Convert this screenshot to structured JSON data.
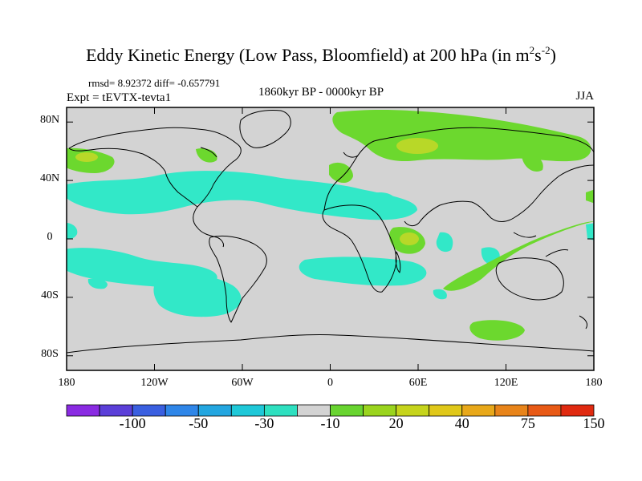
{
  "figure": {
    "title": "Eddy Kinetic Energy (Low Pass, Bloomfield) at 200 hPa (in m",
    "title_sup1": "2",
    "title_mid": "s",
    "title_sup2": "-2",
    "title_end": ")",
    "stats": "rmsd= 8.92372 diff= -0.657791",
    "experiment": "Expt = tEVTX-tevta1",
    "period": "1860kyr BP - 0000kyr BP",
    "season": "JJA"
  },
  "axes": {
    "y_ticks": [
      "80N",
      "40N",
      "0",
      "40S",
      "80S"
    ],
    "y_values": [
      80,
      40,
      0,
      -40,
      -80
    ],
    "x_ticks": [
      "180",
      "120W",
      "60W",
      "0",
      "60E",
      "120E",
      "180"
    ],
    "x_values": [
      -180,
      -120,
      -60,
      0,
      60,
      120,
      180
    ],
    "lat_range": [
      -90,
      90
    ],
    "lon_range": [
      -180,
      180
    ]
  },
  "colorbar": {
    "colors": [
      "#8a2be2",
      "#5b3fd8",
      "#3a5fe0",
      "#2f86e8",
      "#23a6e0",
      "#1fc8d8",
      "#2ee0c0",
      "#d3d3d3",
      "#68d430",
      "#9ad41e",
      "#c6d41c",
      "#e0c81a",
      "#e8a81a",
      "#e8841a",
      "#e85a16",
      "#e02a10"
    ],
    "labels": [
      "-100",
      "-50",
      "-30",
      "-10",
      "20",
      "40",
      "75",
      "150"
    ]
  },
  "colors": {
    "background": "#d3d3d3",
    "cyan": "#32e8c8",
    "green": "#6cd82e",
    "yellowgreen": "#b8d828"
  }
}
